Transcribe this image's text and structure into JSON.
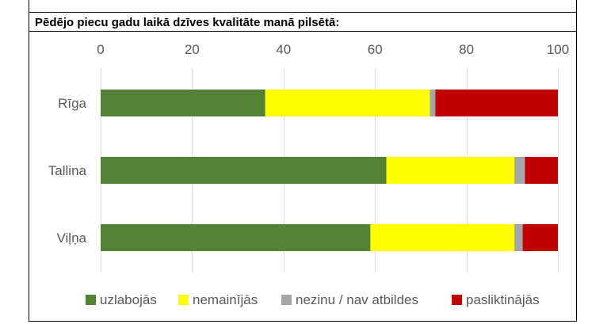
{
  "chart_data": {
    "type": "bar",
    "orientation": "horizontal",
    "stacked": true,
    "title": "Pēdējo piecu gadu laikā dzīves kvalitāte manā pilsētā:",
    "categories": [
      "Rīga",
      "Tallina",
      "Viļņa"
    ],
    "series": [
      {
        "name": "uzlabojās",
        "color": "#538135",
        "values": [
          36,
          62.5,
          59
        ]
      },
      {
        "name": "nemainījās",
        "color": "#FFFF00",
        "values": [
          36,
          28,
          31.5
        ]
      },
      {
        "name": "nezinu / nav atbildes",
        "color": "#A6A6A6",
        "values": [
          1.2,
          2.3,
          1.8
        ]
      },
      {
        "name": "pasliktinājās",
        "color": "#C00000",
        "values": [
          26.8,
          7.2,
          7.7
        ]
      }
    ],
    "x_ticks": [
      "0",
      "20",
      "40",
      "60",
      "80",
      "100"
    ],
    "xlim": [
      0,
      100
    ],
    "xaxis_position": "top",
    "grid": "vertical",
    "legend": "bottom"
  }
}
